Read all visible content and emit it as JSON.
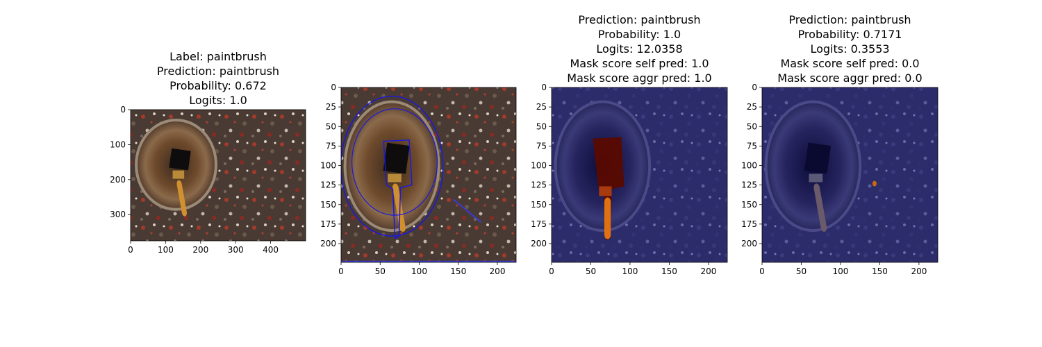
{
  "chart_data": [
    {
      "type": "image",
      "title_lines": [
        "Label: paintbrush",
        "Prediction: paintbrush",
        "Probability: 0.672",
        "Logits: 1.0"
      ],
      "xlim": [
        0,
        500
      ],
      "ylim": [
        375,
        0
      ],
      "xticks": [
        0,
        100,
        200,
        300,
        400
      ],
      "yticks": [
        0,
        100,
        200,
        300
      ],
      "variant": "original"
    },
    {
      "type": "image",
      "title_lines": [],
      "xlim": [
        0,
        224
      ],
      "ylim": [
        224,
        0
      ],
      "xticks": [
        0,
        50,
        100,
        150,
        200
      ],
      "yticks": [
        0,
        25,
        50,
        75,
        100,
        125,
        150,
        175,
        200
      ],
      "variant": "contours"
    },
    {
      "type": "image",
      "title_lines": [
        "Prediction: paintbrush",
        "Probability: 1.0",
        "Logits: 12.0358",
        "Mask score self pred: 1.0",
        "Mask score aggr pred: 1.0"
      ],
      "xlim": [
        0,
        224
      ],
      "ylim": [
        224,
        0
      ],
      "xticks": [
        0,
        50,
        100,
        150,
        200
      ],
      "yticks": [
        0,
        25,
        50,
        75,
        100,
        125,
        150,
        175,
        200
      ],
      "variant": "mask_brush"
    },
    {
      "type": "image",
      "title_lines": [
        "Prediction: paintbrush",
        "Probability: 0.7171",
        "Logits: 0.3553",
        "Mask score self pred: 0.0",
        "Mask score aggr pred: 0.0"
      ],
      "xlim": [
        0,
        224
      ],
      "ylim": [
        224,
        0
      ],
      "xticks": [
        0,
        50,
        100,
        150,
        200
      ],
      "yticks": [
        0,
        25,
        50,
        75,
        100,
        125,
        150,
        175,
        200
      ],
      "variant": "mask_dot"
    }
  ]
}
